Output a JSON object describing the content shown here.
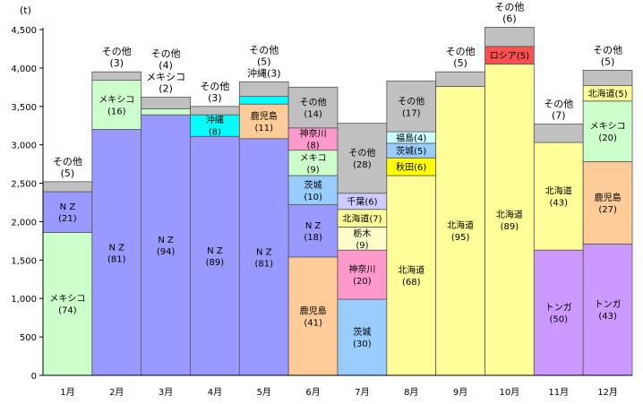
{
  "chart_data": {
    "type": "bar",
    "stacked": true,
    "y_unit": "(t)",
    "ylim": [
      0,
      4500
    ],
    "yticks": [
      "4,500",
      "4,000",
      "3,500",
      "3,000",
      "2,500",
      "2,000",
      "1,500",
      "1,000",
      "500",
      "0"
    ],
    "grid": false,
    "colors": {
      "mexico": "#ccffcc",
      "nz": "#9999ff",
      "other": "#c0c0c0",
      "okinawa": "#00ffff",
      "kagoshima": "#ffcc99",
      "kanagawa": "#ff99cc",
      "ibaraki": "#99ccff",
      "tochigi": "#ffffcc",
      "hokkaido": "#ffff99",
      "chiba": "#ccccff",
      "akita": "#ffff00",
      "fukushima": "#ccffff",
      "russia": "#ff5050",
      "tonga": "#cc99ff"
    },
    "months": [
      {
        "label": "1月",
        "segments": [
          {
            "key": "mexico",
            "value": 1860,
            "label": "メキシコ\n(74)"
          },
          {
            "key": "nz",
            "value": 530,
            "label": "N Z\n(21)"
          },
          {
            "key": "other",
            "value": 130,
            "label": ""
          }
        ],
        "top_label": "その他\n(5)"
      },
      {
        "label": "2月",
        "segments": [
          {
            "key": "nz",
            "value": 3200,
            "label": "N Z\n(81)"
          },
          {
            "key": "mexico",
            "value": 640,
            "label": "メキシコ\n(16)"
          },
          {
            "key": "other",
            "value": 110,
            "label": ""
          }
        ],
        "top_label": "その他\n(3)"
      },
      {
        "label": "3月",
        "segments": [
          {
            "key": "nz",
            "value": 3390,
            "label": "N Z\n(94)"
          },
          {
            "key": "mexico",
            "value": 80,
            "label": ""
          },
          {
            "key": "other",
            "value": 150,
            "label": ""
          }
        ],
        "top_label": "その他\n(4)\nメキシコ\n(2)"
      },
      {
        "label": "4月",
        "segments": [
          {
            "key": "nz",
            "value": 3110,
            "label": "N Z\n(89)"
          },
          {
            "key": "okinawa",
            "value": 280,
            "label": "沖縄\n(8)"
          },
          {
            "key": "other",
            "value": 110,
            "label": ""
          }
        ],
        "top_label": "その他\n(3)"
      },
      {
        "label": "5月",
        "segments": [
          {
            "key": "nz",
            "value": 3080,
            "label": "N Z\n(81)"
          },
          {
            "key": "kagoshima",
            "value": 450,
            "label": "鹿児島\n(11)"
          },
          {
            "key": "okinawa",
            "value": 100,
            "label": ""
          },
          {
            "key": "other",
            "value": 190,
            "label": ""
          }
        ],
        "top_label": "その他\n(5)\n沖縄(3)"
      },
      {
        "label": "6月",
        "segments": [
          {
            "key": "kagoshima",
            "value": 1540,
            "label": "鹿児島\n(41)"
          },
          {
            "key": "nz",
            "value": 680,
            "label": "N Z\n(18)"
          },
          {
            "key": "ibaraki",
            "value": 380,
            "label": "茨城\n(10)"
          },
          {
            "key": "mexico",
            "value": 330,
            "label": "メキコ\n(9)"
          },
          {
            "key": "kanagawa",
            "value": 290,
            "label": "神奈川\n(8)"
          },
          {
            "key": "other",
            "value": 530,
            "label": "その他\n(14)"
          }
        ],
        "top_label": ""
      },
      {
        "label": "7月",
        "segments": [
          {
            "key": "ibaraki",
            "value": 990,
            "label": "茨城\n(30)"
          },
          {
            "key": "kanagawa",
            "value": 640,
            "label": "神奈川\n(20)"
          },
          {
            "key": "tochigi",
            "value": 300,
            "label": "栃木\n(9)"
          },
          {
            "key": "hokkaido",
            "value": 230,
            "label": "北海道(7)"
          },
          {
            "key": "chiba",
            "value": 210,
            "label": "千葉(6)"
          },
          {
            "key": "other",
            "value": 910,
            "label": "その他\n(28)"
          }
        ],
        "top_label": ""
      },
      {
        "label": "8月",
        "segments": [
          {
            "key": "hokkaido",
            "value": 2600,
            "label": "北海道\n(68)"
          },
          {
            "key": "akita",
            "value": 230,
            "label": "秋田(6)"
          },
          {
            "key": "ibaraki",
            "value": 190,
            "label": "茨城(5)"
          },
          {
            "key": "fukushima",
            "value": 150,
            "label": "福島(4)"
          },
          {
            "key": "other",
            "value": 660,
            "label": "その他\n(17)"
          }
        ],
        "top_label": ""
      },
      {
        "label": "9月",
        "segments": [
          {
            "key": "hokkaido",
            "value": 3760,
            "label": "北海道\n(95)"
          },
          {
            "key": "other",
            "value": 190,
            "label": ""
          }
        ],
        "top_label": "その他\n(5)"
      },
      {
        "label": "10月",
        "segments": [
          {
            "key": "hokkaido",
            "value": 4050,
            "label": "北海道\n(89)"
          },
          {
            "key": "russia",
            "value": 230,
            "label": "ロシア(5)"
          },
          {
            "key": "other",
            "value": 250,
            "label": ""
          }
        ],
        "top_label": "その他\n(6)"
      },
      {
        "label": "11月",
        "segments": [
          {
            "key": "tonga",
            "value": 1630,
            "label": "トンガ\n(50)"
          },
          {
            "key": "hokkaido",
            "value": 1400,
            "label": "北海道\n(43)"
          },
          {
            "key": "other",
            "value": 240,
            "label": ""
          }
        ],
        "top_label": "その他\n(7)"
      },
      {
        "label": "12月",
        "segments": [
          {
            "key": "tonga",
            "value": 1710,
            "label": "トンガ\n(43)"
          },
          {
            "key": "kagoshima",
            "value": 1070,
            "label": "鹿児島\n(27)"
          },
          {
            "key": "mexico",
            "value": 790,
            "label": "メキシコ\n(20)"
          },
          {
            "key": "hokkaido",
            "value": 200,
            "label": "北海道(5)"
          },
          {
            "key": "other",
            "value": 200,
            "label": ""
          }
        ],
        "top_label": "その他\n(5)"
      }
    ]
  }
}
